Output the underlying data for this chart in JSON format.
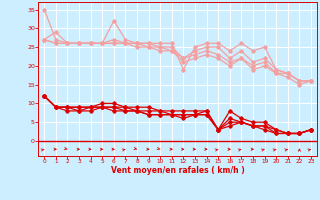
{
  "x": [
    0,
    1,
    2,
    3,
    4,
    5,
    6,
    7,
    8,
    9,
    10,
    11,
    12,
    13,
    14,
    15,
    16,
    17,
    18,
    19,
    20,
    21,
    22,
    23
  ],
  "line1": [
    35,
    27,
    26,
    26,
    26,
    26,
    32,
    27,
    26,
    26,
    26,
    26,
    19,
    25,
    26,
    26,
    24,
    26,
    24,
    25,
    19,
    18,
    16,
    16
  ],
  "line2": [
    27,
    29,
    26,
    26,
    26,
    26,
    27,
    26,
    26,
    26,
    25,
    25,
    22,
    24,
    25,
    25,
    22,
    24,
    21,
    22,
    19,
    18,
    16,
    16
  ],
  "line3": [
    27,
    26,
    26,
    26,
    26,
    26,
    26,
    26,
    26,
    25,
    25,
    24,
    22,
    23,
    24,
    23,
    21,
    22,
    20,
    21,
    18,
    18,
    16,
    16
  ],
  "line4": [
    27,
    26,
    26,
    26,
    26,
    26,
    26,
    26,
    25,
    25,
    24,
    24,
    21,
    22,
    23,
    22,
    20,
    22,
    19,
    20,
    18,
    17,
    15,
    16
  ],
  "bot1": [
    12,
    9,
    9,
    9,
    9,
    10,
    10,
    9,
    9,
    9,
    8,
    8,
    8,
    8,
    8,
    3,
    8,
    6,
    5,
    5,
    3,
    2,
    2,
    3
  ],
  "bot2": [
    12,
    9,
    9,
    9,
    9,
    9,
    9,
    9,
    8,
    8,
    8,
    7,
    7,
    7,
    8,
    3,
    6,
    5,
    4,
    4,
    3,
    2,
    2,
    3
  ],
  "bot3": [
    12,
    9,
    9,
    8,
    9,
    9,
    9,
    8,
    8,
    7,
    7,
    7,
    7,
    7,
    7,
    3,
    5,
    5,
    4,
    4,
    2,
    2,
    2,
    3
  ],
  "bot4": [
    12,
    9,
    8,
    8,
    8,
    9,
    8,
    8,
    8,
    7,
    7,
    7,
    6,
    7,
    7,
    3,
    4,
    5,
    4,
    3,
    2,
    2,
    2,
    3
  ],
  "color_light": "#f4a0a0",
  "color_dark": "#dd0000",
  "bg_color": "#cceeff",
  "grid_color": "#ffffff",
  "xlabel": "Vent moyen/en rafales ( km/h )",
  "ylim": [
    -4,
    37
  ],
  "xlim": [
    -0.5,
    23.5
  ],
  "yticks": [
    0,
    5,
    10,
    15,
    20,
    25,
    30,
    35
  ],
  "xticks": [
    0,
    1,
    2,
    3,
    4,
    5,
    6,
    7,
    8,
    9,
    10,
    11,
    12,
    13,
    14,
    15,
    16,
    17,
    18,
    19,
    20,
    21,
    22,
    23
  ],
  "arrow_angles_deg": [
    45,
    90,
    135,
    90,
    90,
    90,
    90,
    45,
    135,
    90,
    135,
    90,
    90,
    90,
    90,
    45,
    90,
    45,
    90,
    45,
    45,
    45,
    0,
    45
  ]
}
